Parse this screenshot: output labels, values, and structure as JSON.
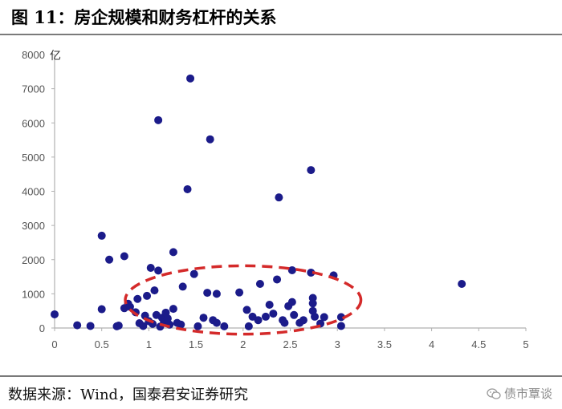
{
  "title": "图 11：房企规模和财务杠杆的关系",
  "source": "数据来源：Wind，国泰君安证券研究",
  "watermark": {
    "text": "债市覃谈",
    "icon": "wechat-icon"
  },
  "colors": {
    "point": "#1b1b8a",
    "highlight": "#d42a2a",
    "axis": "#b0b0b0",
    "text": "#555555"
  },
  "chart_data": {
    "type": "scatter",
    "title": "",
    "xlabel": "",
    "ylabel": "亿",
    "xlim": [
      0,
      5
    ],
    "ylim": [
      0,
      8000
    ],
    "xticks": [
      "0",
      "0.5",
      "1",
      "1.5",
      "2",
      "2.5",
      "3",
      "3.5",
      "4",
      "4.5",
      "5"
    ],
    "yticks": [
      "0",
      "1000",
      "2000",
      "3000",
      "4000",
      "5000",
      "6000",
      "7000",
      "8000"
    ],
    "grid": false,
    "legend": "none",
    "series": [
      {
        "points": [
          [
            0.0,
            400
          ],
          [
            0.24,
            80
          ],
          [
            0.38,
            60
          ],
          [
            0.5,
            2700
          ],
          [
            0.5,
            550
          ],
          [
            0.58,
            2000
          ],
          [
            0.66,
            50
          ],
          [
            0.68,
            70
          ],
          [
            0.74,
            2100
          ],
          [
            0.74,
            580
          ],
          [
            0.78,
            710
          ],
          [
            0.8,
            620
          ],
          [
            0.86,
            460
          ],
          [
            0.88,
            850
          ],
          [
            0.9,
            140
          ],
          [
            0.94,
            60
          ],
          [
            0.96,
            360
          ],
          [
            0.98,
            940
          ],
          [
            1.0,
            200
          ],
          [
            1.02,
            1760
          ],
          [
            1.04,
            120
          ],
          [
            1.06,
            1100
          ],
          [
            1.08,
            380
          ],
          [
            1.1,
            1680
          ],
          [
            1.1,
            6080
          ],
          [
            1.12,
            40
          ],
          [
            1.14,
            300
          ],
          [
            1.16,
            180
          ],
          [
            1.18,
            450
          ],
          [
            1.2,
            280
          ],
          [
            1.22,
            100
          ],
          [
            1.26,
            2220
          ],
          [
            1.26,
            560
          ],
          [
            1.3,
            150
          ],
          [
            1.34,
            100
          ],
          [
            1.36,
            1210
          ],
          [
            1.41,
            4060
          ],
          [
            1.44,
            7300
          ],
          [
            1.48,
            1580
          ],
          [
            1.52,
            50
          ],
          [
            1.58,
            300
          ],
          [
            1.62,
            1030
          ],
          [
            1.65,
            5520
          ],
          [
            1.68,
            230
          ],
          [
            1.72,
            1000
          ],
          [
            1.72,
            150
          ],
          [
            1.8,
            50
          ],
          [
            1.96,
            1040
          ],
          [
            2.04,
            530
          ],
          [
            2.06,
            50
          ],
          [
            2.1,
            330
          ],
          [
            2.16,
            230
          ],
          [
            2.18,
            1290
          ],
          [
            2.24,
            330
          ],
          [
            2.28,
            680
          ],
          [
            2.32,
            420
          ],
          [
            2.36,
            1420
          ],
          [
            2.38,
            3820
          ],
          [
            2.42,
            230
          ],
          [
            2.44,
            150
          ],
          [
            2.48,
            640
          ],
          [
            2.52,
            1690
          ],
          [
            2.52,
            760
          ],
          [
            2.54,
            380
          ],
          [
            2.6,
            150
          ],
          [
            2.64,
            230
          ],
          [
            2.72,
            4620
          ],
          [
            2.72,
            1620
          ],
          [
            2.74,
            880
          ],
          [
            2.74,
            720
          ],
          [
            2.74,
            500
          ],
          [
            2.76,
            330
          ],
          [
            2.82,
            130
          ],
          [
            2.86,
            320
          ],
          [
            2.96,
            1540
          ],
          [
            3.04,
            320
          ],
          [
            3.04,
            60
          ],
          [
            4.32,
            1290
          ]
        ]
      }
    ],
    "annotation": {
      "shape": "dashed-ellipse",
      "center": [
        2.0,
        820
      ],
      "rx": 1.25,
      "ry": 1000
    }
  }
}
